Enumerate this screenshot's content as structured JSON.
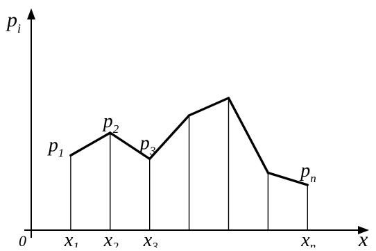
{
  "chart_data": {
    "type": "line",
    "axis_labels": {
      "y": {
        "main": "p",
        "sub": "i"
      },
      "x": "x",
      "origin": "0"
    },
    "x": [
      1,
      2,
      3,
      4,
      5,
      6,
      7
    ],
    "y": [
      4.3,
      5.6,
      4.1,
      6.6,
      7.6,
      3.3,
      2.6
    ],
    "point_labels": [
      {
        "index": 0,
        "main": "p",
        "sub": "1"
      },
      {
        "index": 1,
        "main": "p",
        "sub": "2"
      },
      {
        "index": 2,
        "main": "p",
        "sub": "3"
      },
      {
        "index": 6,
        "main": "p",
        "sub": "n"
      }
    ],
    "x_tick_labels": [
      {
        "index": 0,
        "main": "x",
        "sub": "1"
      },
      {
        "index": 1,
        "main": "x",
        "sub": "2"
      },
      {
        "index": 2,
        "main": "x",
        "sub": "3"
      },
      {
        "index": 6,
        "main": "x",
        "sub": "n"
      }
    ],
    "xlim": [
      0,
      8.7
    ],
    "ylim": [
      0,
      12
    ],
    "grid": false,
    "legend": "none"
  }
}
